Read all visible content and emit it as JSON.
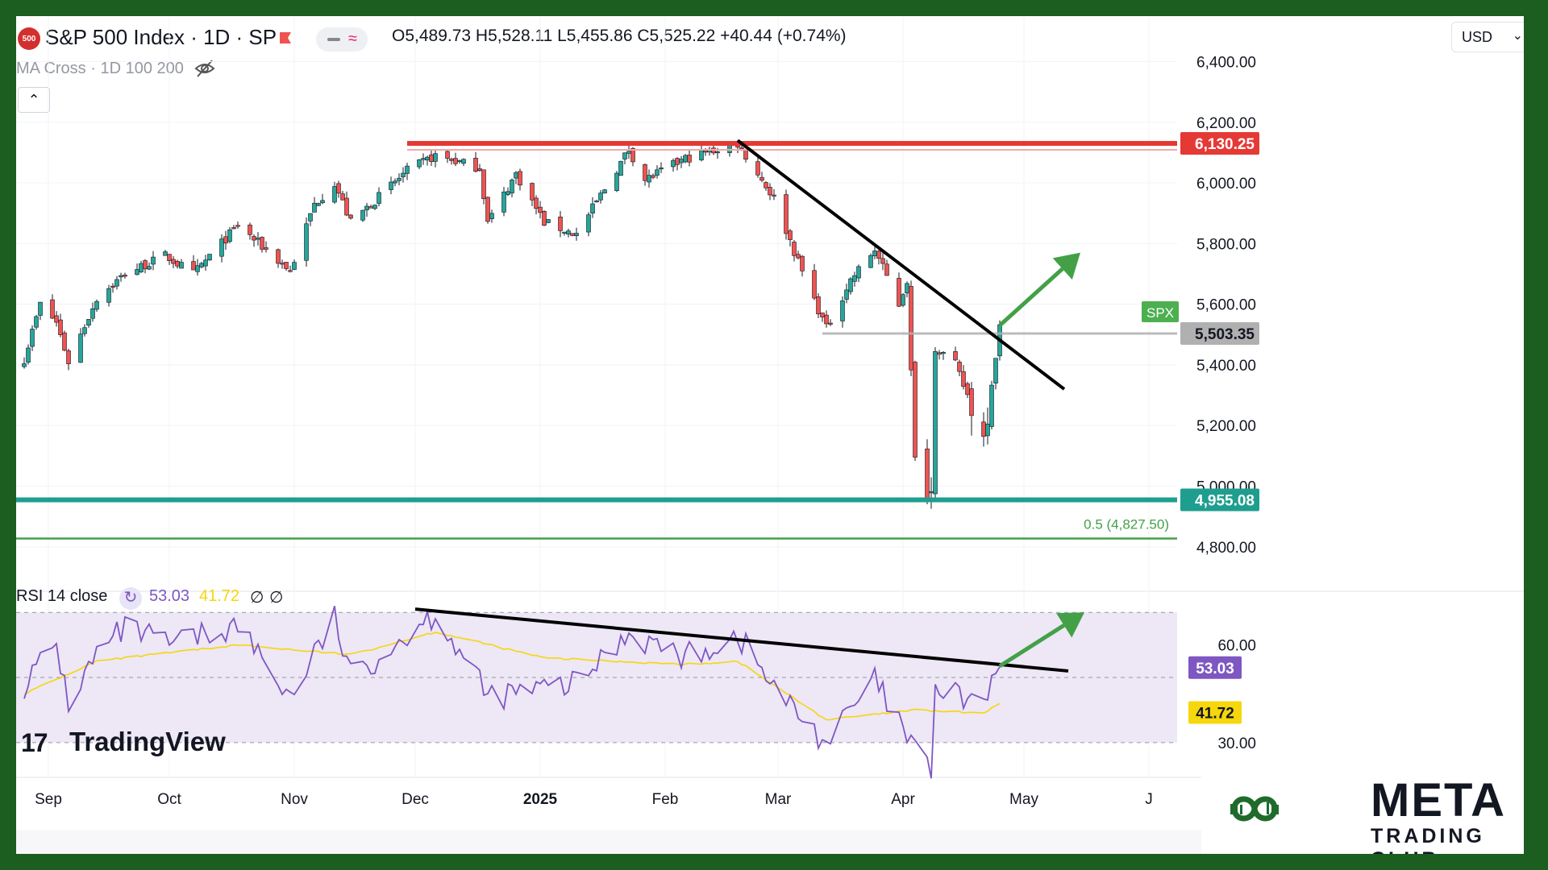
{
  "header": {
    "symbol_badge": "500",
    "title": "S&P 500 Index · 1D · SP",
    "ohlc": "O5,489.73  H5,528.11  L5,455.86  C5,525.22  +40.44 (+0.74%)",
    "indicator_label": "MA Cross · 1D 100 200",
    "currency": "USD"
  },
  "rsi_panel": {
    "label": "RSI 14 close",
    "rsi_value": "53.03",
    "ma_value": "41.72",
    "na1": "∅",
    "na2": "∅"
  },
  "watermark": {
    "mark": "17",
    "word": "TradingView"
  },
  "brand": {
    "name": "META",
    "sub": "TRADING CLUB"
  },
  "colors": {
    "up": "#26a69a",
    "down": "#ef5350",
    "resistance": "#e53935",
    "support": "#1e9e8e",
    "fib": "#43a047",
    "trend": "#000000",
    "arrow": "#43a047",
    "rsi": "#7e57c2",
    "rsi_ma": "#f6d60c",
    "rsi_band": "#ede7f6",
    "price_line": "#b0b0b0"
  },
  "chart_data": [
    {
      "type": "candlestick",
      "title": "S&P 500 Index · 1D · SP",
      "x_tick_labels": [
        "Sep",
        "Oct",
        "Nov",
        "Dec",
        "2025",
        "Feb",
        "Mar",
        "Apr",
        "May",
        "J"
      ],
      "x_tick_dates": [
        "2024-09-01",
        "2024-10-01",
        "2024-11-01",
        "2024-12-01",
        "2025-01-01",
        "2025-02-01",
        "2025-03-01",
        "2025-04-01",
        "2025-05-01",
        "2025-06-01"
      ],
      "y_tick_labels": [
        "6,400.00",
        "6,200.00",
        "6,000.00",
        "5,800.00",
        "5,600.00",
        "5,400.00",
        "5,200.00",
        "5,000.00",
        "4,800.00"
      ],
      "y_ticks": [
        6400,
        6200,
        6000,
        5800,
        5600,
        5400,
        5200,
        5000,
        4800
      ],
      "ylim": [
        4680,
        6550
      ],
      "series": [
        {
          "date_start": "2024-08-26",
          "date_end": "2025-04-25",
          "close_anchors": [
            [
              "2024-08-26",
              5420
            ],
            [
              "2024-08-30",
              5600
            ],
            [
              "2024-09-03",
              5540
            ],
            [
              "2024-09-06",
              5410
            ],
            [
              "2024-09-13",
              5620
            ],
            [
              "2024-09-20",
              5700
            ],
            [
              "2024-09-30",
              5760
            ],
            [
              "2024-10-07",
              5700
            ],
            [
              "2024-10-18",
              5860
            ],
            [
              "2024-10-31",
              5710
            ],
            [
              "2024-11-06",
              5930
            ],
            [
              "2024-11-11",
              6000
            ],
            [
              "2024-11-15",
              5870
            ],
            [
              "2024-11-29",
              6040
            ],
            [
              "2024-12-06",
              6090
            ],
            [
              "2024-12-17",
              6050
            ],
            [
              "2024-12-19",
              5870
            ],
            [
              "2024-12-26",
              6030
            ],
            [
              "2025-01-02",
              5870
            ],
            [
              "2025-01-10",
              5830
            ],
            [
              "2025-01-23",
              6110
            ],
            [
              "2025-01-27",
              6010
            ],
            [
              "2025-02-06",
              6080
            ],
            [
              "2025-02-19",
              6130
            ],
            [
              "2025-02-28",
              5950
            ],
            [
              "2025-03-06",
              5740
            ],
            [
              "2025-03-13",
              5520
            ],
            [
              "2025-03-19",
              5680
            ],
            [
              "2025-03-25",
              5780
            ],
            [
              "2025-03-31",
              5600
            ],
            [
              "2025-04-02",
              5680
            ],
            [
              "2025-04-04",
              5070
            ],
            [
              "2025-04-08",
              4980
            ],
            [
              "2025-04-09",
              5460
            ],
            [
              "2025-04-14",
              5400
            ],
            [
              "2025-04-21",
              5160
            ],
            [
              "2025-04-25",
              5525
            ]
          ]
        }
      ],
      "horizontal_levels": [
        {
          "label": "6,130.25",
          "value": 6130.25,
          "from": "2024-11-29",
          "color": "#e53935"
        },
        {
          "label": "4,955.08",
          "value": 4955.08,
          "from": "start",
          "color": "#1e9e8e"
        },
        {
          "label": "0.5 (4,827.50)",
          "value": 4827.5,
          "from": "start",
          "color": "#43a047"
        },
        {
          "label": "5,503.35",
          "value": 5503.35,
          "from": "2025-03-12",
          "color": "#b0b0b0"
        }
      ],
      "price_tag": "SPX",
      "trendline": {
        "from": [
          "2025-02-19",
          6140
        ],
        "to": [
          "2025-05-11",
          5320
        ]
      },
      "arrow": {
        "from": [
          "2025-04-25",
          5530
        ],
        "to": [
          "2025-05-15",
          5770
        ]
      }
    },
    {
      "type": "line",
      "title": "RSI 14 close",
      "y_tick_labels": [
        "60.00",
        "30.00"
      ],
      "y_ticks": [
        60,
        30
      ],
      "bands": [
        30,
        50,
        70
      ],
      "ylim": [
        26,
        75
      ],
      "series": [
        {
          "name": "RSI 14 close",
          "anchors": [
            [
              "2024-08-26",
              48
            ],
            [
              "2024-09-03",
              60
            ],
            [
              "2024-09-06",
              42
            ],
            [
              "2024-09-13",
              57
            ],
            [
              "2024-09-20",
              65
            ],
            [
              "2024-10-01",
              60
            ],
            [
              "2024-10-18",
              66
            ],
            [
              "2024-10-31",
              44
            ],
            [
              "2024-11-11",
              68
            ],
            [
              "2024-11-15",
              50
            ],
            [
              "2024-12-06",
              70
            ],
            [
              "2024-12-19",
              44
            ],
            [
              "2025-01-10",
              48
            ],
            [
              "2025-01-23",
              64
            ],
            [
              "2025-02-06",
              56
            ],
            [
              "2025-02-19",
              63
            ],
            [
              "2025-03-01",
              45
            ],
            [
              "2025-03-13",
              30
            ],
            [
              "2025-03-25",
              49
            ],
            [
              "2025-04-04",
              27
            ],
            [
              "2025-04-08",
              22
            ],
            [
              "2025-04-09",
              46
            ],
            [
              "2025-04-21",
              42
            ],
            [
              "2025-04-25",
              53
            ]
          ]
        },
        {
          "name": "RSI MA",
          "anchors": [
            [
              "2024-08-26",
              45
            ],
            [
              "2024-09-13",
              55
            ],
            [
              "2024-10-18",
              60
            ],
            [
              "2024-11-15",
              57
            ],
            [
              "2024-12-06",
              64
            ],
            [
              "2025-01-02",
              56
            ],
            [
              "2025-02-06",
              54
            ],
            [
              "2025-02-19",
              55
            ],
            [
              "2025-03-13",
              37
            ],
            [
              "2025-04-04",
              40
            ],
            [
              "2025-04-21",
              39
            ],
            [
              "2025-04-25",
              42
            ]
          ]
        }
      ],
      "value_tags": [
        "53.03",
        "41.72"
      ],
      "trendline": {
        "from": [
          "2024-12-01",
          71
        ],
        "to": [
          "2025-05-12",
          52
        ]
      },
      "arrow": {
        "from": [
          "2025-04-25",
          53.5
        ],
        "to": [
          "2025-05-16",
          70
        ]
      }
    }
  ]
}
